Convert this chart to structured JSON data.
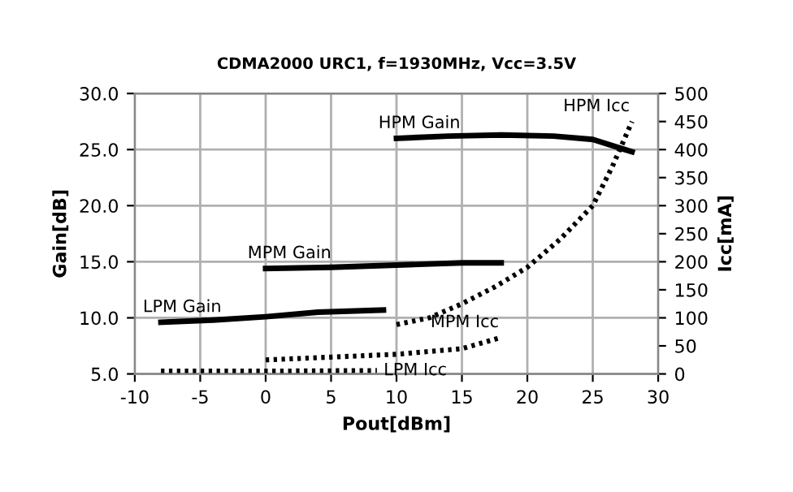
{
  "chart_data": {
    "type": "line",
    "subtitle": "CDMA2000 URC1, f=1930MHz, Vcc=3.5V",
    "xlabel": "Pout[dBm]",
    "ylabel": "Gain[dB]",
    "y2label": "Icc[mA]",
    "xlim": [
      -10,
      30
    ],
    "xticks": [
      -10,
      -5,
      0,
      5,
      10,
      15,
      20,
      25,
      30
    ],
    "ylim": [
      5,
      30
    ],
    "yticks": [
      {
        "value": 5,
        "label": "5.0"
      },
      {
        "value": 10,
        "label": "10.0"
      },
      {
        "value": 15,
        "label": "15.0"
      },
      {
        "value": 20,
        "label": "20.0"
      },
      {
        "value": 25,
        "label": "25.0"
      },
      {
        "value": 30,
        "label": "30.0"
      }
    ],
    "y2lim": [
      0,
      500
    ],
    "y2ticks": [
      0,
      50,
      100,
      150,
      200,
      250,
      300,
      350,
      400,
      450,
      500
    ],
    "grid": true,
    "legend": false,
    "series": [
      {
        "name": "LPM Gain",
        "color": "#000000",
        "line_style": "solid",
        "x": [
          -8,
          -4,
          0,
          4,
          9
        ],
        "values": [
          9.6,
          9.8,
          10.1,
          10.5,
          10.7
        ]
      },
      {
        "name": "MPM Gain",
        "color": "#000000",
        "line_style": "solid",
        "x": [
          0,
          5,
          10,
          15,
          18
        ],
        "values": [
          14.4,
          14.5,
          14.7,
          14.9,
          14.9
        ]
      },
      {
        "name": "HPM Gain",
        "color": "#000000",
        "line_style": "solid",
        "x": [
          10,
          14,
          18,
          22,
          25,
          28
        ],
        "values": [
          26.0,
          26.2,
          26.3,
          26.2,
          25.9,
          24.8
        ]
      },
      {
        "name": "LPM Icc",
        "color": "#000000",
        "line_style": "dotted",
        "axis": "y2",
        "x": [
          -8,
          0,
          8.5
        ],
        "values": [
          5,
          5,
          6
        ]
      },
      {
        "name": "MPM Icc",
        "color": "#000000",
        "line_style": "dotted",
        "axis": "y2",
        "x": [
          0,
          5,
          10,
          15,
          18
        ],
        "values": [
          25,
          30,
          35,
          45,
          65
        ]
      },
      {
        "name": "HPM Icc",
        "color": "#000000",
        "line_style": "dotted",
        "axis": "y2",
        "x": [
          10,
          12.5,
          15,
          17.5,
          20,
          22.5,
          25,
          26.5,
          28
        ],
        "values": [
          88,
          100,
          125,
          155,
          190,
          240,
          300,
          370,
          450
        ]
      }
    ]
  }
}
